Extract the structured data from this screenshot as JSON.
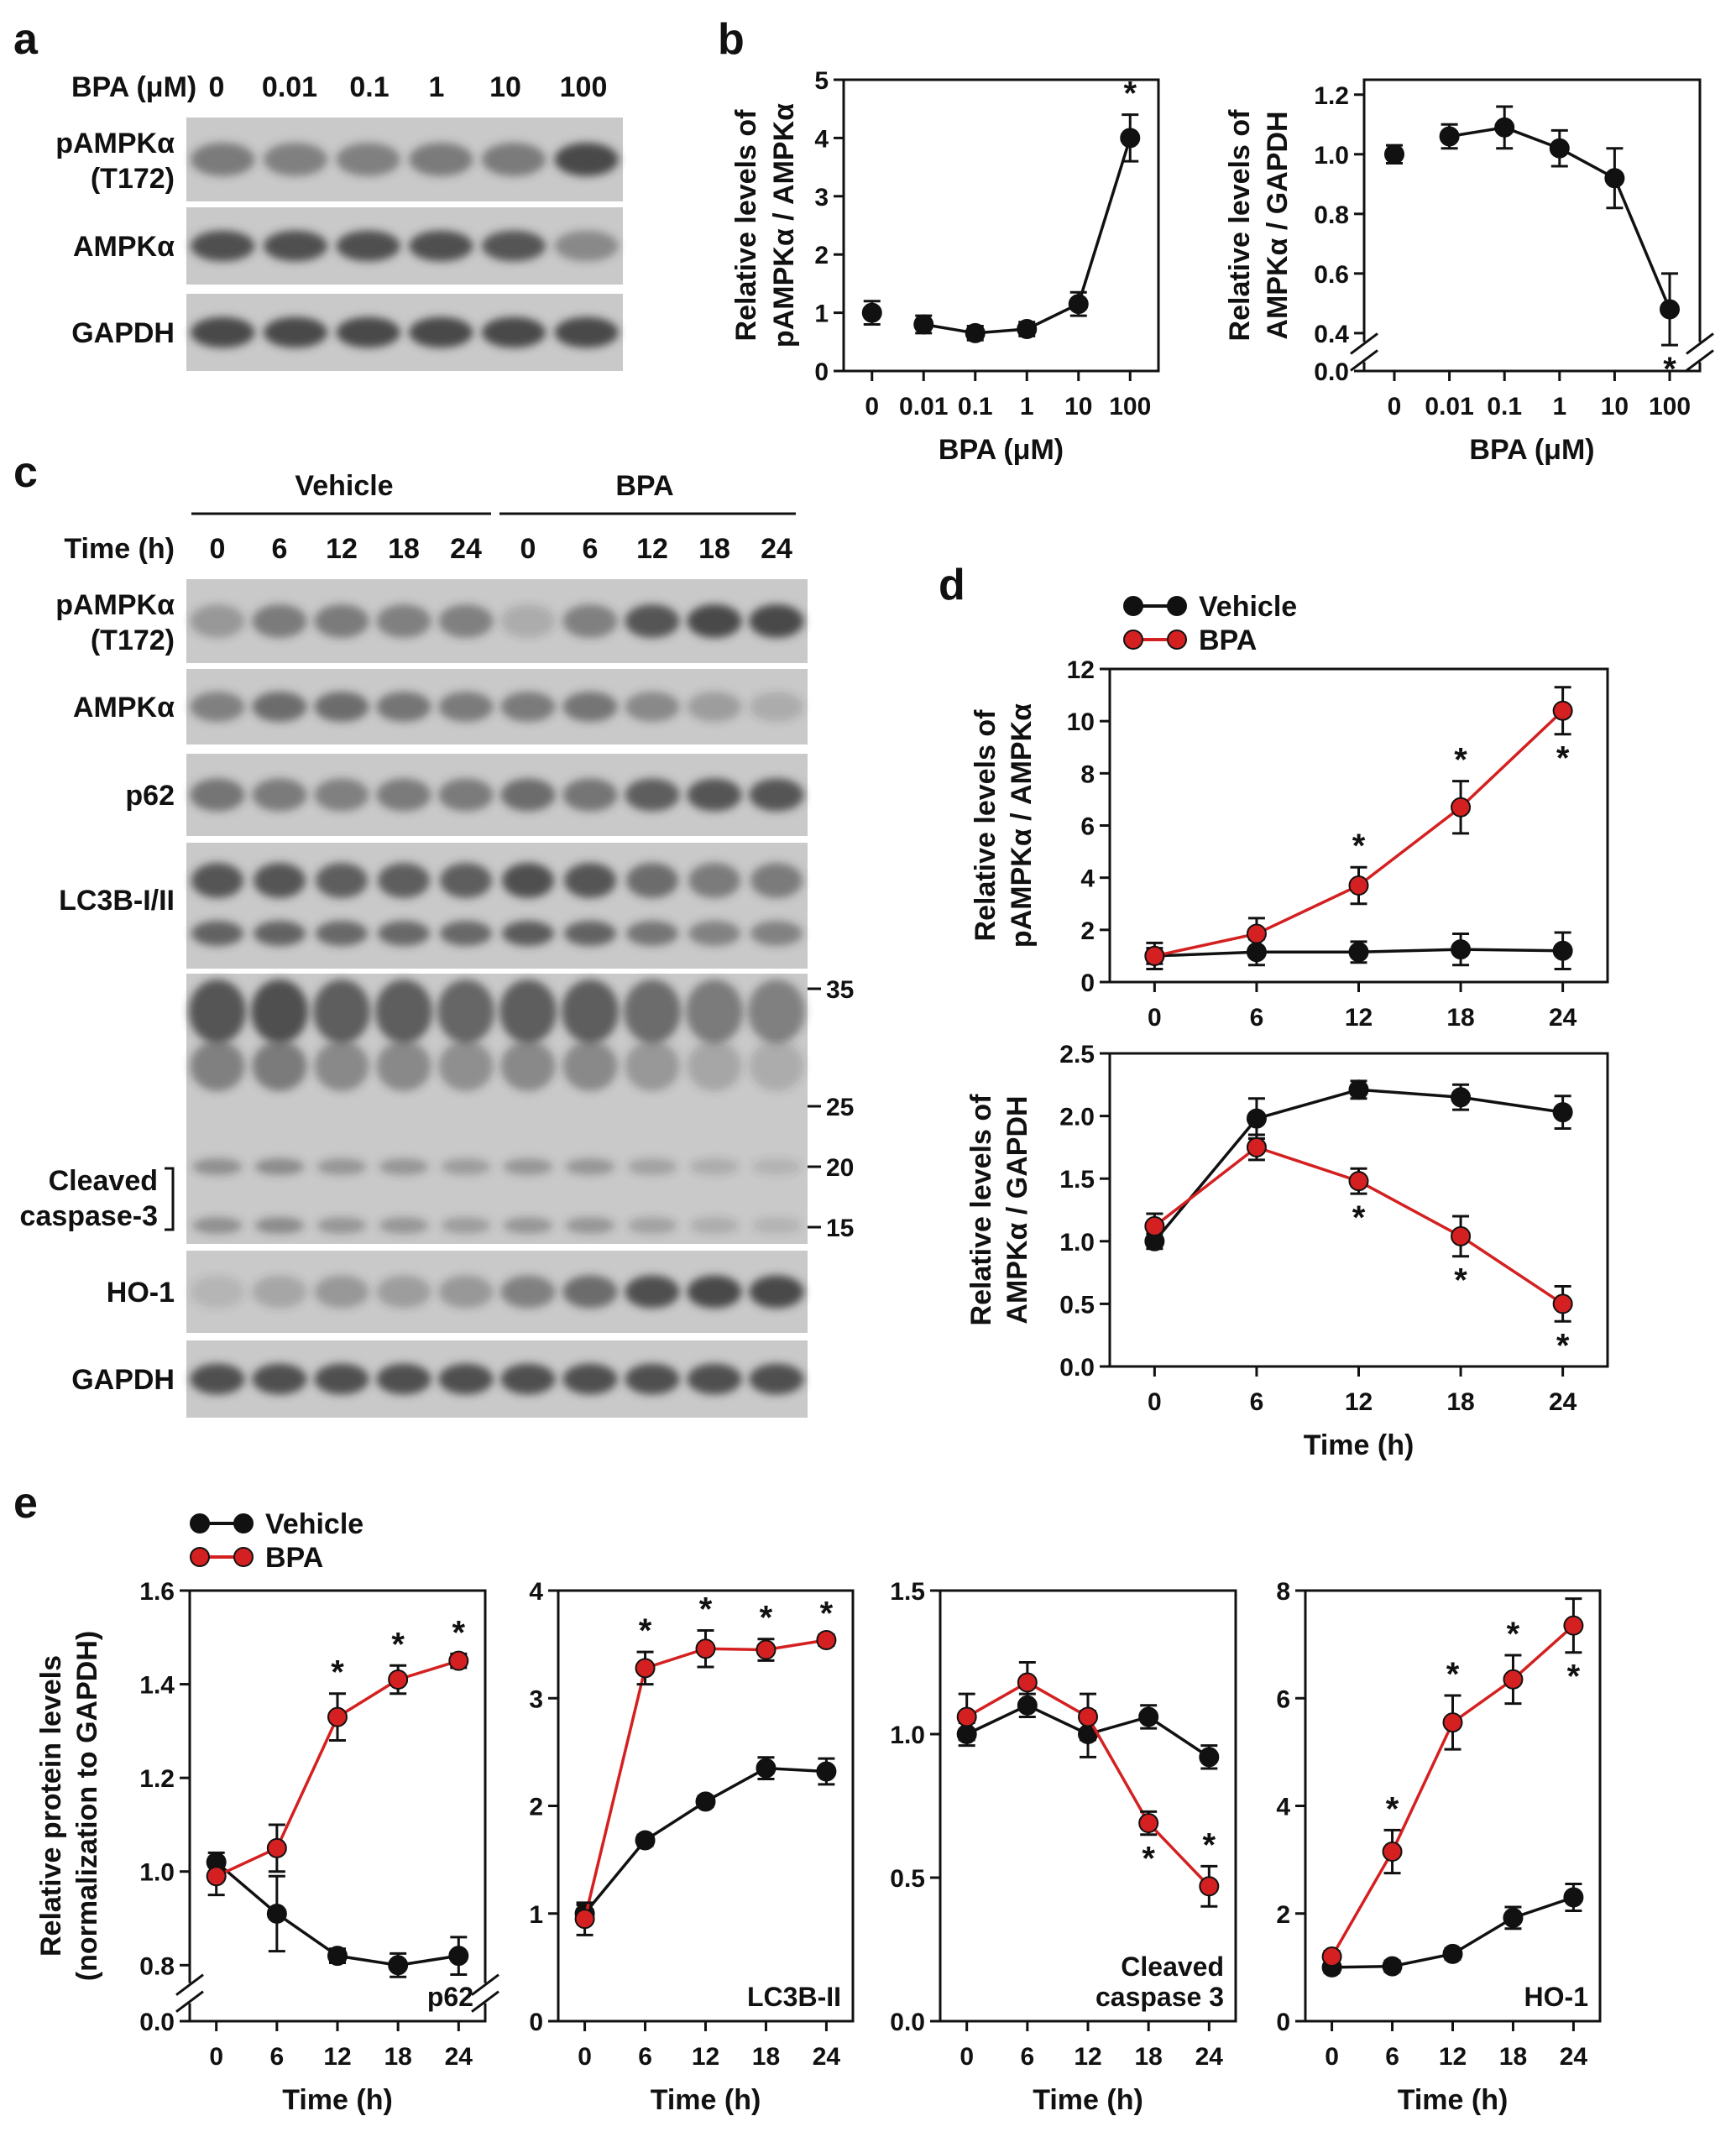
{
  "colors": {
    "vehicle": "#111111",
    "bpa": "#d42020",
    "blot_bg": "#c9c9c9",
    "band": "#3a3a3a"
  },
  "panels": {
    "a": "a",
    "b": "b",
    "c": "c",
    "d": "d",
    "e": "e"
  },
  "blot_a": {
    "header": "BPA (μM)",
    "lanes": [
      "0",
      "0.01",
      "0.1",
      "1",
      "10",
      "100"
    ],
    "rows": [
      {
        "label": "pAMPKα",
        "label2": "(T172)",
        "bands": [
          0.55,
          0.5,
          0.5,
          0.55,
          0.55,
          0.9
        ]
      },
      {
        "label": "AMPKα",
        "label2": "",
        "bands": [
          0.85,
          0.85,
          0.85,
          0.85,
          0.8,
          0.45
        ]
      },
      {
        "label": "GAPDH",
        "label2": "",
        "bands": [
          0.9,
          0.9,
          0.9,
          0.9,
          0.9,
          0.9
        ]
      }
    ]
  },
  "blot_c": {
    "group_vehicle": "Vehicle",
    "group_bpa": "BPA",
    "time_header": "Time (h)",
    "lanes": [
      "0",
      "6",
      "12",
      "18",
      "24",
      "0",
      "6",
      "12",
      "18",
      "24"
    ],
    "rows": [
      {
        "label": "pAMPKα",
        "label2": "(T172)",
        "bands": [
          0.35,
          0.55,
          0.55,
          0.5,
          0.5,
          0.2,
          0.5,
          0.8,
          0.9,
          0.9
        ]
      },
      {
        "label": "AMPKα",
        "label2": "",
        "bands": [
          0.5,
          0.65,
          0.65,
          0.6,
          0.55,
          0.55,
          0.6,
          0.45,
          0.3,
          0.2
        ]
      },
      {
        "label": "p62",
        "label2": "",
        "bands": [
          0.6,
          0.55,
          0.5,
          0.55,
          0.55,
          0.65,
          0.6,
          0.75,
          0.8,
          0.8
        ]
      },
      {
        "label": "LC3B-I/II",
        "label2": "",
        "bands": [
          0.8,
          0.8,
          0.75,
          0.75,
          0.75,
          0.85,
          0.8,
          0.65,
          0.55,
          0.55
        ]
      },
      {
        "label": "Cleaved",
        "label2": "caspase-3",
        "bands": [
          0.5,
          0.55,
          0.45,
          0.45,
          0.4,
          0.45,
          0.45,
          0.35,
          0.25,
          0.2
        ]
      },
      {
        "label": "HO-1",
        "label2": "",
        "bands": [
          0.15,
          0.25,
          0.35,
          0.3,
          0.35,
          0.5,
          0.65,
          0.85,
          0.9,
          0.9
        ]
      },
      {
        "label": "GAPDH",
        "label2": "",
        "bands": [
          0.85,
          0.85,
          0.85,
          0.85,
          0.85,
          0.85,
          0.85,
          0.85,
          0.85,
          0.85
        ]
      }
    ],
    "markers": [
      "35",
      "25",
      "20",
      "15"
    ]
  },
  "legend": {
    "vehicle": "Vehicle",
    "bpa": "BPA"
  },
  "chart_data": [
    {
      "id": "b1",
      "type": "line",
      "ylabel1": "Relative levels of",
      "ylabel2": "pAMPKα / AMPKα",
      "xlabel": "BPA (μM)",
      "categories": [
        "0",
        "0.01",
        "0.1",
        "1",
        "10",
        "100"
      ],
      "ylim": [
        0,
        5
      ],
      "yticks": [
        "0",
        "1",
        "2",
        "3",
        "4",
        "5"
      ],
      "ytick_values": [
        0,
        1,
        2,
        3,
        4,
        5
      ],
      "series": [
        {
          "name": "BPA",
          "color": "vehicle",
          "values": [
            1.0,
            0.8,
            0.65,
            0.72,
            1.15,
            4.0
          ],
          "errors": [
            0.2,
            0.15,
            0.12,
            0.12,
            0.2,
            0.4
          ],
          "connect_from": 1
        }
      ],
      "annotations": [
        {
          "index": 5,
          "text": "*",
          "where": "above"
        }
      ]
    },
    {
      "id": "b2",
      "type": "line",
      "ylabel1": "Relative levels of",
      "ylabel2": "AMPKα / GAPDH",
      "xlabel": "BPA (μM)",
      "categories": [
        "0",
        "0.01",
        "0.1",
        "1",
        "10",
        "100"
      ],
      "ylim": [
        0,
        1.25
      ],
      "axis_break": true,
      "yticks": [
        "0.0",
        "0.4",
        "0.6",
        "0.8",
        "1.0",
        "1.2"
      ],
      "ytick_values": [
        0,
        0.4,
        0.6,
        0.8,
        1.0,
        1.2
      ],
      "series": [
        {
          "name": "BPA",
          "color": "vehicle",
          "values": [
            1.0,
            1.06,
            1.09,
            1.02,
            0.92,
            0.48
          ],
          "errors": [
            0.03,
            0.04,
            0.07,
            0.06,
            0.1,
            0.12
          ],
          "connect_from": 1
        }
      ],
      "annotations": [
        {
          "index": 5,
          "text": "*",
          "where": "below"
        }
      ]
    },
    {
      "id": "d1",
      "type": "line",
      "ylabel1": "Relative levels of",
      "ylabel2": "pAMPKα / AMPKα",
      "xlabel": "",
      "categories": [
        "0",
        "6",
        "12",
        "18",
        "24"
      ],
      "ylim": [
        0,
        12
      ],
      "yticks": [
        "0",
        "2",
        "4",
        "6",
        "8",
        "10",
        "12"
      ],
      "ytick_values": [
        0,
        2,
        4,
        6,
        8,
        10,
        12
      ],
      "series": [
        {
          "name": "Vehicle",
          "color": "vehicle",
          "values": [
            1.0,
            1.15,
            1.15,
            1.25,
            1.2
          ],
          "errors": [
            0.5,
            0.5,
            0.4,
            0.6,
            0.7
          ],
          "connect_from": 0
        },
        {
          "name": "BPA",
          "color": "bpa",
          "values": [
            1.0,
            1.85,
            3.7,
            6.7,
            10.4
          ],
          "errors": [
            0.3,
            0.6,
            0.7,
            1.0,
            0.9
          ],
          "connect_from": 0
        }
      ],
      "annotations": [
        {
          "index": 2,
          "text": "*",
          "where": "above"
        },
        {
          "index": 3,
          "text": "*",
          "where": "above"
        },
        {
          "index": 4,
          "text": "*",
          "where": "below"
        }
      ]
    },
    {
      "id": "d2",
      "type": "line",
      "ylabel1": "Relative levels of",
      "ylabel2": "AMPKα / GAPDH",
      "xlabel": "Time (h)",
      "categories": [
        "0",
        "6",
        "12",
        "18",
        "24"
      ],
      "ylim": [
        0,
        2.5
      ],
      "yticks": [
        "0.0",
        "0.5",
        "1.0",
        "1.5",
        "2.0",
        "2.5"
      ],
      "ytick_values": [
        0,
        0.5,
        1.0,
        1.5,
        2.0,
        2.5
      ],
      "series": [
        {
          "name": "Vehicle",
          "color": "vehicle",
          "values": [
            1.0,
            1.98,
            2.21,
            2.15,
            2.03
          ],
          "errors": [
            0.06,
            0.16,
            0.07,
            0.1,
            0.13
          ],
          "connect_from": 0
        },
        {
          "name": "BPA",
          "color": "bpa",
          "values": [
            1.12,
            1.75,
            1.48,
            1.04,
            0.5
          ],
          "errors": [
            0.1,
            0.1,
            0.1,
            0.16,
            0.14
          ],
          "connect_from": 0
        }
      ],
      "annotations": [
        {
          "index": 2,
          "text": "*",
          "where": "below"
        },
        {
          "index": 3,
          "text": "*",
          "where": "below"
        },
        {
          "index": 4,
          "text": "*",
          "where": "below"
        }
      ]
    },
    {
      "id": "e1",
      "type": "line",
      "ylabel1": "Relative protein levels",
      "ylabel2": "(normalization to GAPDH)",
      "xlabel": "Time (h)",
      "categories": [
        "0",
        "6",
        "12",
        "18",
        "24"
      ],
      "inner_label": [
        "p62"
      ],
      "ylim": [
        0,
        1.6
      ],
      "axis_break": true,
      "yticks": [
        "0.0",
        "0.8",
        "1.0",
        "1.2",
        "1.4",
        "1.6"
      ],
      "ytick_values": [
        0,
        0.8,
        1.0,
        1.2,
        1.4,
        1.6
      ],
      "series": [
        {
          "name": "Vehicle",
          "color": "vehicle",
          "values": [
            1.02,
            0.91,
            0.82,
            0.8,
            0.82
          ],
          "errors": [
            0.02,
            0.08,
            0.015,
            0.025,
            0.04
          ],
          "connect_from": 0
        },
        {
          "name": "BPA",
          "color": "bpa",
          "values": [
            0.99,
            1.05,
            1.33,
            1.41,
            1.45
          ],
          "errors": [
            0.04,
            0.05,
            0.05,
            0.03,
            0.015
          ],
          "connect_from": 0
        }
      ],
      "annotations": [
        {
          "index": 2,
          "text": "*",
          "where": "above"
        },
        {
          "index": 3,
          "text": "*",
          "where": "above"
        },
        {
          "index": 4,
          "text": "*",
          "where": "above"
        }
      ]
    },
    {
      "id": "e2",
      "type": "line",
      "ylabel1": "",
      "ylabel2": "",
      "xlabel": "Time (h)",
      "categories": [
        "0",
        "6",
        "12",
        "18",
        "24"
      ],
      "inner_label": [
        "LC3B-II"
      ],
      "ylim": [
        0,
        4
      ],
      "yticks": [
        "0",
        "1",
        "2",
        "3",
        "4"
      ],
      "ytick_values": [
        0,
        1,
        2,
        3,
        4
      ],
      "series": [
        {
          "name": "Vehicle",
          "color": "vehicle",
          "values": [
            1.0,
            1.68,
            2.04,
            2.35,
            2.32
          ],
          "errors": [
            0.08,
            0.05,
            0.05,
            0.1,
            0.12
          ],
          "connect_from": 0
        },
        {
          "name": "BPA",
          "color": "bpa",
          "values": [
            0.95,
            3.28,
            3.46,
            3.45,
            3.54
          ],
          "errors": [
            0.15,
            0.15,
            0.17,
            0.1,
            0.05
          ],
          "connect_from": 0
        }
      ],
      "annotations": [
        {
          "index": 1,
          "text": "*",
          "where": "above"
        },
        {
          "index": 2,
          "text": "*",
          "where": "above"
        },
        {
          "index": 3,
          "text": "*",
          "where": "above"
        },
        {
          "index": 4,
          "text": "*",
          "where": "above"
        }
      ]
    },
    {
      "id": "e3",
      "type": "line",
      "ylabel1": "",
      "ylabel2": "",
      "xlabel": "Time (h)",
      "categories": [
        "0",
        "6",
        "12",
        "18",
        "24"
      ],
      "inner_label": [
        "Cleaved",
        "caspase 3"
      ],
      "ylim": [
        0,
        1.5
      ],
      "yticks": [
        "0.0",
        "0.5",
        "1.0",
        "1.5"
      ],
      "ytick_values": [
        0,
        0.5,
        1.0,
        1.5
      ],
      "series": [
        {
          "name": "Vehicle",
          "color": "vehicle",
          "values": [
            1.0,
            1.1,
            1.0,
            1.06,
            0.92
          ],
          "errors": [
            0.04,
            0.04,
            0.08,
            0.04,
            0.04
          ],
          "connect_from": 0
        },
        {
          "name": "BPA",
          "color": "bpa",
          "values": [
            1.06,
            1.18,
            1.06,
            0.69,
            0.47
          ],
          "errors": [
            0.08,
            0.07,
            0.08,
            0.04,
            0.07
          ],
          "connect_from": 0
        }
      ],
      "annotations": [
        {
          "index": 3,
          "text": "*",
          "where": "below"
        },
        {
          "index": 4,
          "text": "*",
          "where": "above"
        }
      ]
    },
    {
      "id": "e4",
      "type": "line",
      "ylabel1": "",
      "ylabel2": "",
      "xlabel": "Time (h)",
      "categories": [
        "0",
        "6",
        "12",
        "18",
        "24"
      ],
      "inner_label": [
        "HO-1"
      ],
      "ylim": [
        0,
        8
      ],
      "yticks": [
        "0",
        "2",
        "4",
        "6",
        "8"
      ],
      "ytick_values": [
        0,
        2,
        4,
        6,
        8
      ],
      "series": [
        {
          "name": "Vehicle",
          "color": "vehicle",
          "values": [
            1.0,
            1.02,
            1.25,
            1.92,
            2.3
          ],
          "errors": [
            0.1,
            0.1,
            0.1,
            0.2,
            0.25
          ],
          "connect_from": 0
        },
        {
          "name": "BPA",
          "color": "bpa",
          "values": [
            1.2,
            3.15,
            5.55,
            6.35,
            7.35
          ],
          "errors": [
            0.1,
            0.4,
            0.5,
            0.45,
            0.5
          ],
          "connect_from": 0
        }
      ],
      "annotations": [
        {
          "index": 1,
          "text": "*",
          "where": "above"
        },
        {
          "index": 2,
          "text": "*",
          "where": "above"
        },
        {
          "index": 3,
          "text": "*",
          "where": "above"
        },
        {
          "index": 4,
          "text": "*",
          "where": "below"
        }
      ]
    }
  ]
}
